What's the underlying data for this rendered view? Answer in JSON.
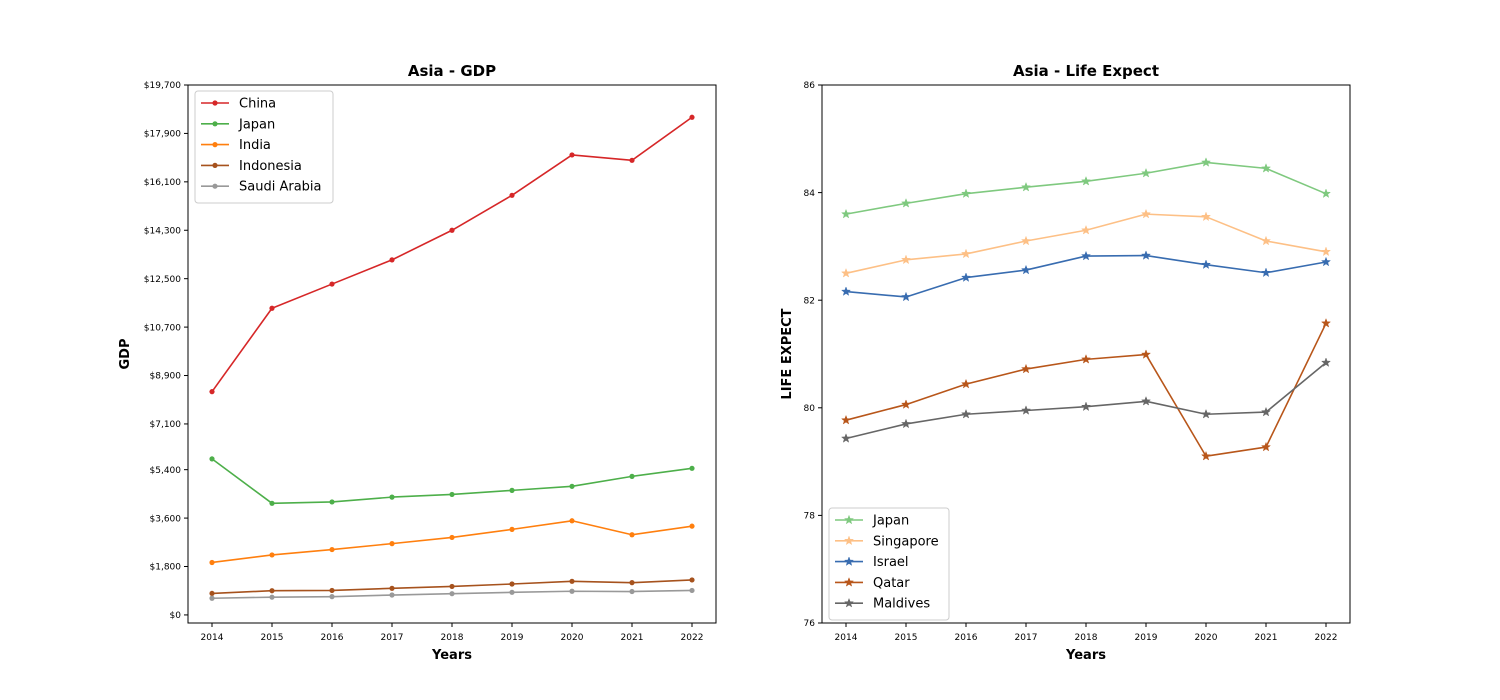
{
  "chart_data": [
    {
      "type": "line",
      "title": "Asia - GDP",
      "xlabel": "Years",
      "ylabel": "GDP",
      "x": [
        2014,
        2015,
        2016,
        2017,
        2018,
        2019,
        2020,
        2021,
        2022
      ],
      "xlim": [
        2013.6,
        2022.4
      ],
      "ylim": [
        -300,
        19700
      ],
      "yticks": [
        0,
        1800,
        3600,
        5400,
        7100,
        8900,
        10700,
        12500,
        14300,
        16100,
        17900,
        19700
      ],
      "ytick_labels": [
        "$0",
        "$1,800",
        "$3,600",
        "$5,400",
        "$7,100",
        "$8,900",
        "$10,700",
        "$12,500",
        "$14,300",
        "$16,100",
        "$17,900",
        "$19,700"
      ],
      "marker": "circle",
      "grid": false,
      "legend_position": "upper-left",
      "series": [
        {
          "name": "China",
          "color": "#d62728",
          "values": [
            8300,
            11400,
            12300,
            13200,
            14300,
            15600,
            17100,
            16900,
            18500
          ]
        },
        {
          "name": "Japan",
          "color": "#4daf4a",
          "values": [
            5800,
            4150,
            4200,
            4380,
            4480,
            4630,
            4780,
            5150,
            5450
          ]
        },
        {
          "name": "India",
          "color": "#ff7f0e",
          "values": [
            1950,
            2230,
            2430,
            2650,
            2880,
            3180,
            3500,
            2980,
            3300
          ]
        },
        {
          "name": "Indonesia",
          "color": "#a6521d",
          "values": [
            800,
            900,
            910,
            990,
            1060,
            1150,
            1250,
            1200,
            1300
          ]
        },
        {
          "name": "Saudi Arabia",
          "color": "#999999",
          "values": [
            620,
            660,
            680,
            740,
            790,
            840,
            880,
            870,
            910
          ]
        }
      ]
    },
    {
      "type": "line",
      "title": "Asia - Life Expect",
      "xlabel": "Years",
      "ylabel": "LIFE EXPECT",
      "x": [
        2014,
        2015,
        2016,
        2017,
        2018,
        2019,
        2020,
        2021,
        2022
      ],
      "xlim": [
        2013.6,
        2022.4
      ],
      "ylim": [
        76,
        86
      ],
      "yticks": [
        76,
        78,
        80,
        82,
        84,
        86
      ],
      "ytick_labels": [
        "76",
        "78",
        "80",
        "82",
        "84",
        "86"
      ],
      "marker": "star",
      "grid": false,
      "legend_position": "lower-left",
      "series": [
        {
          "name": "Japan",
          "color": "#7fc97f",
          "values": [
            83.6,
            83.8,
            83.98,
            84.1,
            84.21,
            84.36,
            84.56,
            84.45,
            83.98
          ]
        },
        {
          "name": "Singapore",
          "color": "#fdc086",
          "values": [
            82.5,
            82.75,
            82.86,
            83.1,
            83.3,
            83.6,
            83.55,
            83.1,
            82.9
          ]
        },
        {
          "name": "Israel",
          "color": "#386cb0",
          "values": [
            82.16,
            82.06,
            82.42,
            82.56,
            82.82,
            82.83,
            82.66,
            82.51,
            82.71
          ]
        },
        {
          "name": "Qatar",
          "color": "#b8561a",
          "values": [
            79.77,
            80.06,
            80.44,
            80.72,
            80.9,
            80.99,
            79.1,
            79.27,
            81.57
          ]
        },
        {
          "name": "Maldives",
          "color": "#666666",
          "values": [
            79.43,
            79.7,
            79.88,
            79.95,
            80.02,
            80.12,
            79.88,
            79.92,
            80.84
          ]
        }
      ]
    }
  ]
}
